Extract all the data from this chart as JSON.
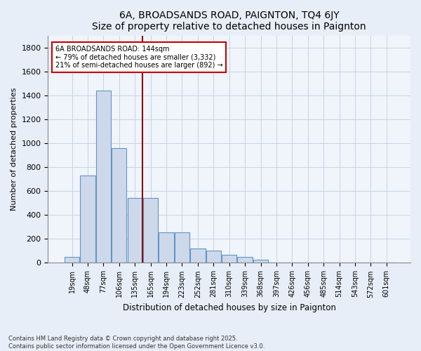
{
  "title": "6A, BROADSANDS ROAD, PAIGNTON, TQ4 6JY",
  "subtitle": "Size of property relative to detached houses in Paignton",
  "xlabel": "Distribution of detached houses by size in Paignton",
  "ylabel": "Number of detached properties",
  "bins": [
    "19sqm",
    "48sqm",
    "77sqm",
    "106sqm",
    "135sqm",
    "165sqm",
    "194sqm",
    "223sqm",
    "252sqm",
    "281sqm",
    "310sqm",
    "339sqm",
    "368sqm",
    "397sqm",
    "426sqm",
    "456sqm",
    "485sqm",
    "514sqm",
    "543sqm",
    "572sqm",
    "601sqm"
  ],
  "values": [
    50,
    730,
    1440,
    960,
    540,
    540,
    255,
    255,
    120,
    100,
    65,
    50,
    25,
    5,
    5,
    5,
    0,
    5,
    0,
    0,
    0
  ],
  "bar_color": "#cdd9ea",
  "bar_edge_color": "#6096c8",
  "vline_x": 4.5,
  "vline_color": "#8b0000",
  "annotation_text": "6A BROADSANDS ROAD: 144sqm\n← 79% of detached houses are smaller (3,332)\n21% of semi-detached houses are larger (892) →",
  "annotation_box_color": "white",
  "annotation_box_edge": "#cc0000",
  "ylim": [
    0,
    1900
  ],
  "yticks": [
    0,
    200,
    400,
    600,
    800,
    1000,
    1200,
    1400,
    1600,
    1800
  ],
  "footer": "Contains HM Land Registry data © Crown copyright and database right 2025.\nContains public sector information licensed under the Open Government Licence v3.0.",
  "bg_color": "#e8eef7",
  "plot_bg_color": "#f0f4fb",
  "grid_color": "#c0cfe0"
}
